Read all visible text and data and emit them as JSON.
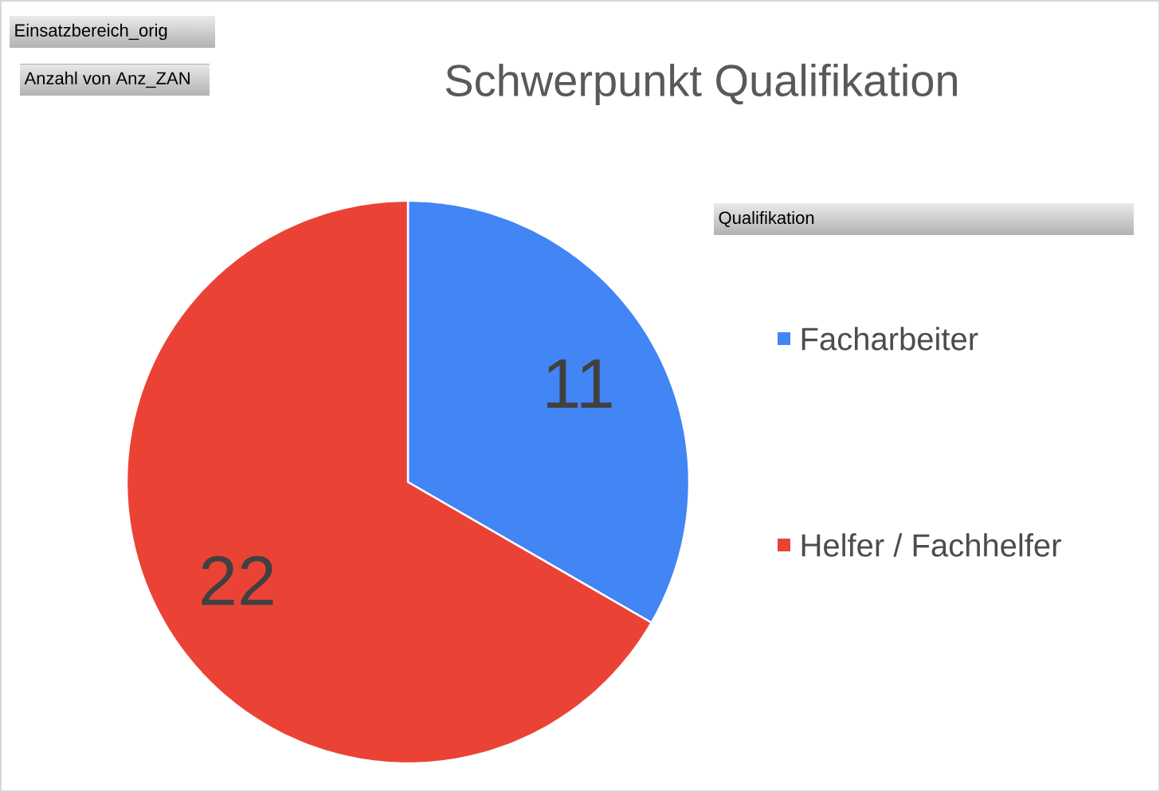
{
  "chart_data": {
    "type": "pie",
    "title": "Schwerpunkt Qualifikation",
    "legend_title": "Qualifikation",
    "categories": [
      "Facharbeiter",
      "Helfer / Fachhelfer"
    ],
    "values": [
      11,
      22
    ],
    "colors": [
      "#4285f4",
      "#ea4335"
    ],
    "data_labels": true,
    "legend": "right",
    "annotations": [
      "Einsatzbereich_orig",
      "Anzahl von Anz_ZAN"
    ]
  }
}
